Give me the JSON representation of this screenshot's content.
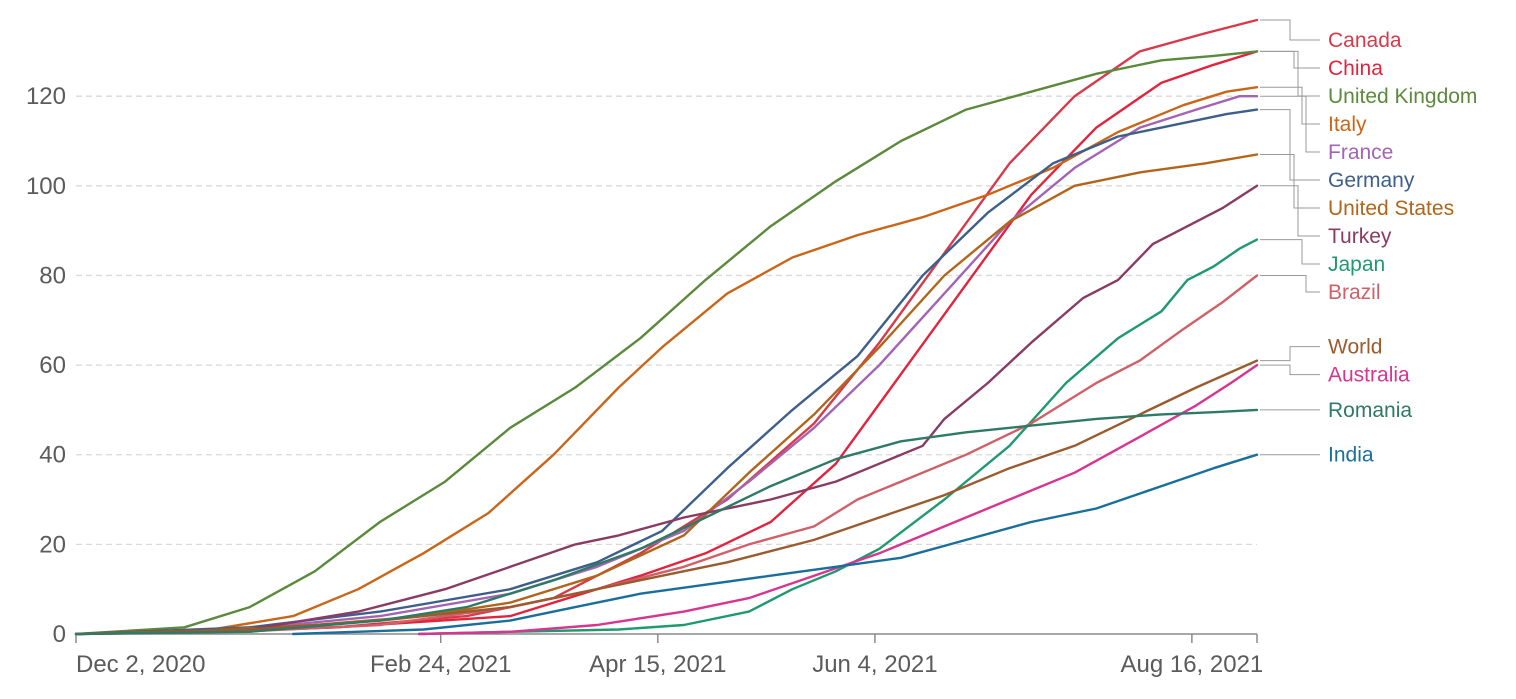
{
  "chart_data": {
    "type": "line",
    "title": "",
    "xlabel": "",
    "ylabel": "",
    "x_range_days": [
      0,
      272
    ],
    "ylim": [
      0,
      137
    ],
    "y_ticks": [
      0,
      20,
      40,
      60,
      80,
      100,
      120
    ],
    "x_ticks": [
      {
        "day": 0,
        "label": "Dec 2, 2020"
      },
      {
        "day": 84,
        "label": "Feb 24, 2021"
      },
      {
        "day": 134,
        "label": "Apr 15, 2021"
      },
      {
        "day": 184,
        "label": "Jun 4, 2021"
      },
      {
        "day": 257,
        "label": "Aug 16, 2021"
      }
    ],
    "grid": true,
    "legend_position": "right",
    "series": [
      {
        "name": "Canada",
        "color": "#d73a4a",
        "points": [
          [
            0,
            0
          ],
          [
            30,
            0.4
          ],
          [
            60,
            1.5
          ],
          [
            90,
            4
          ],
          [
            110,
            8
          ],
          [
            130,
            18
          ],
          [
            150,
            30
          ],
          [
            170,
            47
          ],
          [
            185,
            65
          ],
          [
            200,
            85
          ],
          [
            215,
            105
          ],
          [
            230,
            120
          ],
          [
            245,
            130
          ],
          [
            260,
            134
          ],
          [
            272,
            137
          ]
        ]
      },
      {
        "name": "China",
        "color": "#e0243e",
        "points": [
          [
            0,
            0
          ],
          [
            60,
            1.5
          ],
          [
            100,
            4
          ],
          [
            130,
            13
          ],
          [
            145,
            18
          ],
          [
            160,
            25
          ],
          [
            175,
            38
          ],
          [
            190,
            58
          ],
          [
            205,
            78
          ],
          [
            220,
            98
          ],
          [
            235,
            113
          ],
          [
            250,
            123
          ],
          [
            262,
            127
          ],
          [
            272,
            130
          ]
        ]
      },
      {
        "name": "United Kingdom",
        "color": "#5b8a3c",
        "points": [
          [
            0,
            0
          ],
          [
            10,
            0.6
          ],
          [
            25,
            1.5
          ],
          [
            40,
            6
          ],
          [
            55,
            14
          ],
          [
            70,
            25
          ],
          [
            85,
            34
          ],
          [
            100,
            46
          ],
          [
            115,
            55
          ],
          [
            130,
            66
          ],
          [
            145,
            79
          ],
          [
            160,
            91
          ],
          [
            175,
            101
          ],
          [
            190,
            110
          ],
          [
            205,
            117
          ],
          [
            220,
            121
          ],
          [
            235,
            125
          ],
          [
            250,
            128
          ],
          [
            262,
            129
          ],
          [
            272,
            130
          ]
        ]
      },
      {
        "name": "Italy",
        "color": "#c9661a",
        "points": [
          [
            0,
            0
          ],
          [
            30,
            0.8
          ],
          [
            50,
            4
          ],
          [
            65,
            10
          ],
          [
            80,
            18
          ],
          [
            95,
            27
          ],
          [
            110,
            40
          ],
          [
            125,
            55
          ],
          [
            135,
            64
          ],
          [
            150,
            76
          ],
          [
            165,
            84
          ],
          [
            180,
            89
          ],
          [
            195,
            93
          ],
          [
            210,
            98
          ],
          [
            225,
            104
          ],
          [
            240,
            112
          ],
          [
            255,
            118
          ],
          [
            265,
            121
          ],
          [
            272,
            122
          ]
        ]
      },
      {
        "name": "France",
        "color": "#a464b4",
        "points": [
          [
            0,
            0
          ],
          [
            40,
            1.2
          ],
          [
            70,
            4
          ],
          [
            100,
            9
          ],
          [
            120,
            15
          ],
          [
            140,
            23
          ],
          [
            155,
            34
          ],
          [
            170,
            46
          ],
          [
            185,
            60
          ],
          [
            200,
            76
          ],
          [
            215,
            92
          ],
          [
            230,
            104
          ],
          [
            245,
            113
          ],
          [
            258,
            117
          ],
          [
            268,
            120
          ],
          [
            272,
            120
          ]
        ]
      },
      {
        "name": "Germany",
        "color": "#3d5f8a",
        "points": [
          [
            0,
            0
          ],
          [
            40,
            1.5
          ],
          [
            70,
            5
          ],
          [
            100,
            10
          ],
          [
            120,
            16
          ],
          [
            135,
            23
          ],
          [
            150,
            37
          ],
          [
            165,
            50
          ],
          [
            180,
            62
          ],
          [
            195,
            80
          ],
          [
            210,
            94
          ],
          [
            225,
            105
          ],
          [
            240,
            111
          ],
          [
            255,
            114
          ],
          [
            265,
            116
          ],
          [
            272,
            117
          ]
        ]
      },
      {
        "name": "United States",
        "color": "#b0651a",
        "points": [
          [
            0,
            0
          ],
          [
            30,
            0.8
          ],
          [
            55,
            2
          ],
          [
            80,
            4
          ],
          [
            100,
            7
          ],
          [
            120,
            13
          ],
          [
            140,
            22
          ],
          [
            155,
            36
          ],
          [
            170,
            49
          ],
          [
            185,
            64
          ],
          [
            200,
            80
          ],
          [
            215,
            92
          ],
          [
            230,
            100
          ],
          [
            245,
            103
          ],
          [
            260,
            105
          ],
          [
            272,
            107
          ]
        ]
      },
      {
        "name": "Turkey",
        "color": "#8a3b63",
        "points": [
          [
            0,
            0
          ],
          [
            40,
            1
          ],
          [
            65,
            5
          ],
          [
            85,
            10
          ],
          [
            100,
            15
          ],
          [
            115,
            20
          ],
          [
            125,
            22
          ],
          [
            140,
            26
          ],
          [
            160,
            30
          ],
          [
            175,
            34
          ],
          [
            185,
            38
          ],
          [
            195,
            42
          ],
          [
            200,
            48
          ],
          [
            210,
            56
          ],
          [
            220,
            65
          ],
          [
            232,
            75
          ],
          [
            240,
            79
          ],
          [
            248,
            87
          ],
          [
            256,
            91
          ],
          [
            264,
            95
          ],
          [
            272,
            100
          ]
        ]
      },
      {
        "name": "Japan",
        "color": "#1e9a6e",
        "points": [
          [
            79,
            0
          ],
          [
            100,
            0.5
          ],
          [
            125,
            1
          ],
          [
            140,
            2
          ],
          [
            155,
            5
          ],
          [
            165,
            10
          ],
          [
            175,
            14
          ],
          [
            185,
            19
          ],
          [
            200,
            30
          ],
          [
            215,
            42
          ],
          [
            228,
            56
          ],
          [
            240,
            66
          ],
          [
            250,
            72
          ],
          [
            256,
            79
          ],
          [
            262,
            82
          ],
          [
            268,
            86
          ],
          [
            272,
            88
          ]
        ]
      },
      {
        "name": "Brazil",
        "color": "#d06068",
        "points": [
          [
            0,
            0
          ],
          [
            40,
            0.6
          ],
          [
            70,
            2
          ],
          [
            100,
            6
          ],
          [
            120,
            10
          ],
          [
            140,
            15
          ],
          [
            155,
            20
          ],
          [
            170,
            24
          ],
          [
            180,
            30
          ],
          [
            190,
            34
          ],
          [
            205,
            40
          ],
          [
            220,
            47
          ],
          [
            235,
            56
          ],
          [
            245,
            61
          ],
          [
            255,
            68
          ],
          [
            264,
            74
          ],
          [
            272,
            80
          ]
        ]
      },
      {
        "name": "World",
        "color": "#9a5b2e",
        "points": [
          [
            0,
            0
          ],
          [
            40,
            1
          ],
          [
            70,
            3
          ],
          [
            100,
            6
          ],
          [
            130,
            12
          ],
          [
            150,
            16
          ],
          [
            170,
            21
          ],
          [
            185,
            26
          ],
          [
            200,
            31
          ],
          [
            215,
            37
          ],
          [
            230,
            42
          ],
          [
            245,
            49
          ],
          [
            258,
            55
          ],
          [
            272,
            61
          ]
        ]
      },
      {
        "name": "Australia",
        "color": "#d63592",
        "points": [
          [
            79,
            0
          ],
          [
            100,
            0.5
          ],
          [
            120,
            2
          ],
          [
            140,
            5
          ],
          [
            155,
            8
          ],
          [
            170,
            13
          ],
          [
            185,
            18
          ],
          [
            200,
            24
          ],
          [
            215,
            30
          ],
          [
            230,
            36
          ],
          [
            245,
            44
          ],
          [
            258,
            51
          ],
          [
            266,
            56
          ],
          [
            272,
            60
          ]
        ]
      },
      {
        "name": "Romania",
        "color": "#2e7a64",
        "points": [
          [
            0,
            0
          ],
          [
            40,
            0.5
          ],
          [
            70,
            3
          ],
          [
            90,
            6
          ],
          [
            110,
            12
          ],
          [
            130,
            19
          ],
          [
            145,
            26
          ],
          [
            160,
            33
          ],
          [
            175,
            39
          ],
          [
            190,
            43
          ],
          [
            205,
            45
          ],
          [
            220,
            46.5
          ],
          [
            235,
            48
          ],
          [
            250,
            49
          ],
          [
            262,
            49.5
          ],
          [
            272,
            50
          ]
        ]
      },
      {
        "name": "India",
        "color": "#1a6f9a",
        "points": [
          [
            50,
            0
          ],
          [
            80,
            1
          ],
          [
            100,
            3
          ],
          [
            115,
            6
          ],
          [
            130,
            9
          ],
          [
            145,
            11
          ],
          [
            160,
            13
          ],
          [
            175,
            15
          ],
          [
            190,
            17
          ],
          [
            205,
            21
          ],
          [
            220,
            25
          ],
          [
            235,
            28
          ],
          [
            250,
            33
          ],
          [
            262,
            37
          ],
          [
            272,
            40
          ]
        ]
      }
    ]
  }
}
